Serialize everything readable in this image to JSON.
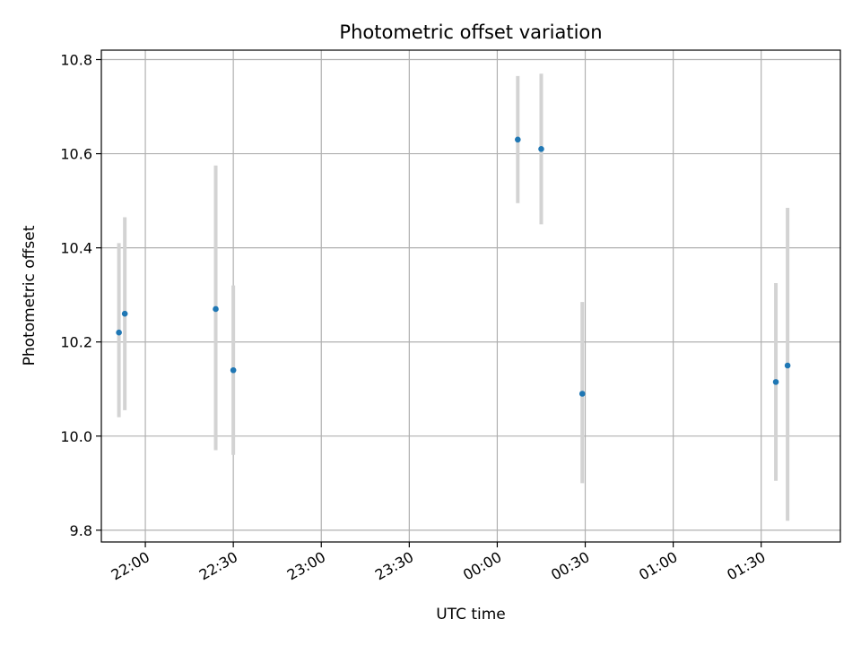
{
  "chart_data": {
    "type": "scatter",
    "title": "Photometric offset variation",
    "xlabel": "UTC time",
    "ylabel": "Photometric offset",
    "x_unit": "clock time (HH:MM), 21:45 on one night through 01:54 the next",
    "xlim": [
      "21:45",
      "01:57"
    ],
    "ylim": [
      9.775,
      10.82
    ],
    "grid": true,
    "x_ticks": [
      "22:00",
      "22:30",
      "23:00",
      "23:30",
      "00:00",
      "00:30",
      "01:00",
      "01:30"
    ],
    "y_ticks": [
      "9.8",
      "10.0",
      "10.2",
      "10.4",
      "10.6",
      "10.8"
    ],
    "marker_color": "#1f77b4",
    "errorbar_color": "#d3d3d3",
    "points": [
      {
        "x": "21:51",
        "y": 10.22,
        "low": 10.04,
        "high": 10.41
      },
      {
        "x": "21:53",
        "y": 10.26,
        "low": 10.055,
        "high": 10.465
      },
      {
        "x": "22:24",
        "y": 10.27,
        "low": 9.97,
        "high": 10.575
      },
      {
        "x": "22:30",
        "y": 10.14,
        "low": 9.96,
        "high": 10.32
      },
      {
        "x": "00:07",
        "y": 10.63,
        "low": 10.495,
        "high": 10.765
      },
      {
        "x": "00:15",
        "y": 10.61,
        "low": 10.45,
        "high": 10.77
      },
      {
        "x": "00:29",
        "y": 10.09,
        "low": 9.9,
        "high": 10.285
      },
      {
        "x": "01:35",
        "y": 10.115,
        "low": 9.905,
        "high": 10.325
      },
      {
        "x": "01:39",
        "y": 10.15,
        "low": 9.82,
        "high": 10.485
      }
    ]
  }
}
